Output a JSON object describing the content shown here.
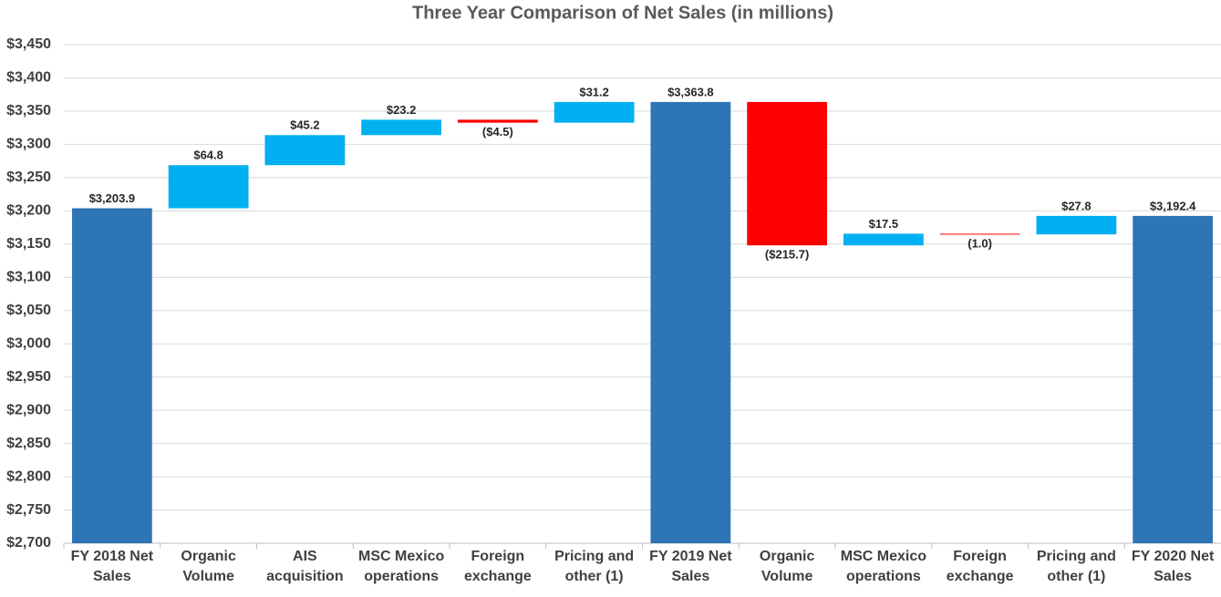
{
  "chart_data": {
    "type": "waterfall",
    "title": "Three Year Comparison of Net Sales (in millions)",
    "categories": [
      "FY 2018 Net Sales",
      "Organic Volume",
      "AIS acquisition",
      "MSC Mexico operations",
      "Foreign exchange",
      "Pricing and other (1)",
      "FY 2019 Net Sales",
      "Organic Volume",
      "MSC Mexico operations",
      "Foreign exchange",
      "Pricing and other (1)",
      "FY 2020 Net Sales"
    ],
    "measure": [
      "total",
      "relative",
      "relative",
      "relative",
      "relative",
      "relative",
      "total",
      "relative",
      "relative",
      "relative",
      "relative",
      "total"
    ],
    "values": [
      3203.9,
      64.8,
      45.2,
      23.2,
      -4.5,
      31.2,
      3363.8,
      -215.7,
      17.5,
      -1.0,
      27.8,
      3192.4
    ],
    "value_labels": [
      "$3,203.9",
      "$64.8",
      "$45.2",
      "$23.2",
      "($4.5)",
      "$31.2",
      "$3,363.8",
      "($215.7)",
      "$17.5",
      "(1.0)",
      "$27.8",
      "$3,192.4"
    ],
    "colors": {
      "total": "#2e75b6",
      "increase": "#00b0f0",
      "decrease": "#ff0000"
    },
    "ylim": [
      2700,
      3450
    ],
    "yticks": [
      {
        "value": 2700,
        "label": "$2,700"
      },
      {
        "value": 2750,
        "label": "$2,750"
      },
      {
        "value": 2800,
        "label": "$2,800"
      },
      {
        "value": 2850,
        "label": "$2,850"
      },
      {
        "value": 2900,
        "label": "$2,900"
      },
      {
        "value": 2950,
        "label": "$2,950"
      },
      {
        "value": 3000,
        "label": "$3,000"
      },
      {
        "value": 3050,
        "label": "$3,050"
      },
      {
        "value": 3100,
        "label": "$3,100"
      },
      {
        "value": 3150,
        "label": "$3,150"
      },
      {
        "value": 3200,
        "label": "$3,200"
      },
      {
        "value": 3250,
        "label": "$3,250"
      },
      {
        "value": 3300,
        "label": "$3,300"
      },
      {
        "value": 3350,
        "label": "$3,350"
      },
      {
        "value": 3400,
        "label": "$3,400"
      },
      {
        "value": 3450,
        "label": "$3,450"
      }
    ],
    "grid": true
  }
}
